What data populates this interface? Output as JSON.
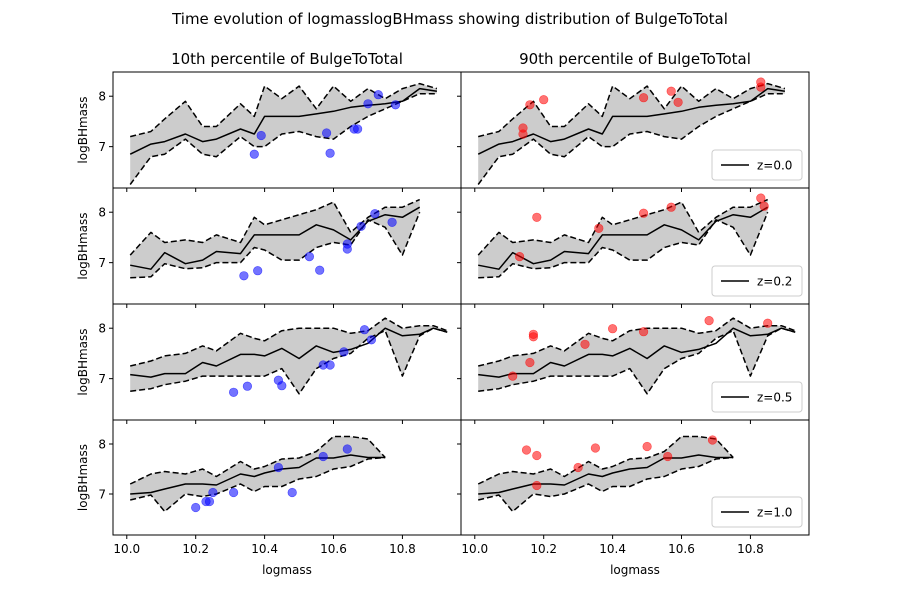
{
  "figure": {
    "suptitle": "Time evolution of logmasslogBHmass showing distribution of BulgeToTotal",
    "columns": [
      {
        "title": "10th percentile of BulgeToTotal",
        "point_color": "#0000ff"
      },
      {
        "title": "90th percentile of BulgeToTotal",
        "point_color": "#ff0000"
      }
    ],
    "xlabel": "logmass",
    "ylabel": "logBHmass",
    "xlim": [
      9.96,
      10.97
    ],
    "ylim": [
      6.18,
      8.48
    ],
    "xticks": [
      "10.0",
      "10.2",
      "10.4",
      "10.6",
      "10.8"
    ],
    "xtick_values": [
      10.0,
      10.2,
      10.4,
      10.6,
      10.8
    ],
    "yticks": [
      "7",
      "8"
    ],
    "ytick_values": [
      7,
      8
    ],
    "band_fill": "#cccccc",
    "line_color": "#000000"
  },
  "chart_data": [
    {
      "type": "line",
      "redshift_label": "z=0.0",
      "median": {
        "x": [
          10.01,
          10.07,
          10.11,
          10.17,
          10.22,
          10.26,
          10.33,
          10.37,
          10.4,
          10.45,
          10.5,
          10.55,
          10.6,
          10.65,
          10.7,
          10.75,
          10.8,
          10.85,
          10.9
        ],
        "y": [
          6.85,
          7.05,
          7.1,
          7.25,
          7.1,
          7.15,
          7.35,
          7.25,
          7.6,
          7.6,
          7.6,
          7.65,
          7.7,
          7.78,
          7.82,
          7.85,
          7.9,
          8.15,
          8.1
        ]
      },
      "upper": {
        "x": [
          10.01,
          10.07,
          10.11,
          10.17,
          10.22,
          10.26,
          10.33,
          10.37,
          10.4,
          10.45,
          10.5,
          10.55,
          10.6,
          10.65,
          10.7,
          10.75,
          10.8,
          10.85,
          10.9
        ],
        "y": [
          7.2,
          7.3,
          7.55,
          7.9,
          7.4,
          7.4,
          7.85,
          7.6,
          8.2,
          7.95,
          8.2,
          7.75,
          8.2,
          7.9,
          8.15,
          7.95,
          8.15,
          8.25,
          8.15
        ]
      },
      "lower": {
        "x": [
          10.01,
          10.07,
          10.11,
          10.17,
          10.22,
          10.26,
          10.33,
          10.37,
          10.4,
          10.45,
          10.5,
          10.55,
          10.6,
          10.65,
          10.7,
          10.75,
          10.8,
          10.85,
          10.9
        ],
        "y": [
          6.25,
          6.8,
          6.85,
          7.15,
          6.85,
          6.8,
          7.2,
          7.0,
          7.0,
          7.25,
          7.3,
          7.2,
          7.15,
          7.4,
          7.6,
          7.75,
          7.9,
          8.05,
          8.05
        ]
      },
      "points_left": {
        "x": [
          10.37,
          10.39,
          10.58,
          10.59,
          10.66,
          10.67,
          10.7,
          10.73,
          10.78
        ],
        "y": [
          6.85,
          7.22,
          7.27,
          6.87,
          7.35,
          7.35,
          7.85,
          8.03,
          7.83
        ]
      },
      "points_right": {
        "x": [
          10.14,
          10.14,
          10.16,
          10.2,
          10.49,
          10.57,
          10.59,
          10.83,
          10.83
        ],
        "y": [
          7.25,
          7.37,
          7.83,
          7.93,
          7.97,
          8.1,
          7.88,
          8.18,
          8.28
        ]
      }
    },
    {
      "type": "line",
      "redshift_label": "z=0.2",
      "median": {
        "x": [
          10.01,
          10.07,
          10.11,
          10.17,
          10.22,
          10.26,
          10.33,
          10.37,
          10.4,
          10.45,
          10.5,
          10.55,
          10.6,
          10.65,
          10.7,
          10.75,
          10.8,
          10.85
        ],
        "y": [
          6.95,
          6.87,
          7.2,
          6.98,
          7.05,
          7.22,
          7.18,
          7.55,
          7.55,
          7.55,
          7.55,
          7.75,
          7.65,
          7.45,
          7.82,
          7.95,
          7.9,
          8.1
        ]
      },
      "upper": {
        "x": [
          10.01,
          10.07,
          10.11,
          10.17,
          10.22,
          10.26,
          10.33,
          10.37,
          10.4,
          10.45,
          10.5,
          10.55,
          10.6,
          10.65,
          10.7,
          10.75,
          10.8,
          10.85
        ],
        "y": [
          7.15,
          7.6,
          7.4,
          7.45,
          7.4,
          7.55,
          7.4,
          7.9,
          7.75,
          7.85,
          7.95,
          8.05,
          8.2,
          7.6,
          7.9,
          8.1,
          8.1,
          8.25
        ]
      },
      "lower": {
        "x": [
          10.01,
          10.07,
          10.11,
          10.17,
          10.22,
          10.26,
          10.33,
          10.37,
          10.4,
          10.45,
          10.5,
          10.55,
          10.6,
          10.65,
          10.7,
          10.75,
          10.8,
          10.85
        ],
        "y": [
          6.7,
          6.72,
          6.98,
          6.88,
          6.9,
          7.0,
          7.0,
          7.3,
          7.25,
          7.05,
          7.05,
          7.3,
          7.4,
          7.35,
          7.85,
          7.7,
          7.15,
          8.0
        ]
      },
      "points_left": {
        "x": [
          10.34,
          10.38,
          10.53,
          10.56,
          10.64,
          10.64,
          10.68,
          10.72,
          10.77
        ],
        "y": [
          6.74,
          6.84,
          7.12,
          6.85,
          7.27,
          7.37,
          7.72,
          7.97,
          7.8
        ]
      },
      "points_right": {
        "x": [
          10.13,
          10.18,
          10.36,
          10.49,
          10.57,
          10.83,
          10.84
        ],
        "y": [
          7.12,
          7.9,
          7.68,
          7.98,
          8.1,
          8.28,
          8.12
        ]
      }
    },
    {
      "type": "line",
      "redshift_label": "z=0.5",
      "median": {
        "x": [
          10.01,
          10.07,
          10.11,
          10.17,
          10.22,
          10.26,
          10.33,
          10.37,
          10.4,
          10.45,
          10.5,
          10.55,
          10.6,
          10.65,
          10.7,
          10.75,
          10.8,
          10.85,
          10.89,
          10.93
        ],
        "y": [
          7.08,
          7.03,
          7.1,
          7.1,
          7.32,
          7.25,
          7.48,
          7.48,
          7.45,
          7.6,
          7.4,
          7.65,
          7.52,
          7.58,
          7.7,
          8.0,
          7.85,
          7.88,
          8.0,
          7.92
        ]
      },
      "upper": {
        "x": [
          10.01,
          10.07,
          10.11,
          10.17,
          10.22,
          10.26,
          10.33,
          10.37,
          10.4,
          10.45,
          10.5,
          10.55,
          10.6,
          10.65,
          10.7,
          10.75,
          10.8,
          10.85,
          10.89,
          10.93
        ],
        "y": [
          7.25,
          7.35,
          7.45,
          7.5,
          7.65,
          7.55,
          7.9,
          7.8,
          7.75,
          7.95,
          8.0,
          8.0,
          8.0,
          7.9,
          7.95,
          8.2,
          8.0,
          8.05,
          8.05,
          7.95
        ]
      },
      "lower": {
        "x": [
          10.01,
          10.07,
          10.11,
          10.17,
          10.22,
          10.26,
          10.33,
          10.37,
          10.4,
          10.45,
          10.5,
          10.55,
          10.6,
          10.65,
          10.7,
          10.75,
          10.8,
          10.85,
          10.89,
          10.93
        ],
        "y": [
          6.75,
          6.8,
          6.88,
          6.95,
          7.05,
          7.05,
          7.05,
          7.05,
          7.05,
          7.2,
          6.7,
          7.2,
          7.4,
          7.5,
          7.8,
          7.95,
          7.05,
          7.85,
          8.0,
          7.92
        ]
      },
      "points_left": {
        "x": [
          10.31,
          10.35,
          10.44,
          10.45,
          10.57,
          10.59,
          10.63,
          10.69,
          10.71
        ],
        "y": [
          6.73,
          6.85,
          6.97,
          6.86,
          7.27,
          7.27,
          7.53,
          7.97,
          7.77
        ]
      },
      "points_right": {
        "x": [
          10.11,
          10.16,
          10.17,
          10.17,
          10.32,
          10.4,
          10.49,
          10.68,
          10.85
        ],
        "y": [
          7.05,
          7.32,
          7.88,
          7.83,
          7.68,
          7.99,
          7.93,
          8.15,
          8.1
        ]
      }
    },
    {
      "type": "line",
      "redshift_label": "z=1.0",
      "median": {
        "x": [
          10.01,
          10.07,
          10.11,
          10.17,
          10.22,
          10.26,
          10.33,
          10.37,
          10.4,
          10.45,
          10.5,
          10.55,
          10.6,
          10.65,
          10.7,
          10.75
        ],
        "y": [
          7.0,
          7.03,
          7.1,
          7.2,
          7.2,
          7.18,
          7.4,
          7.35,
          7.42,
          7.5,
          7.53,
          7.72,
          7.72,
          7.78,
          7.73,
          7.73
        ]
      },
      "upper": {
        "x": [
          10.01,
          10.07,
          10.11,
          10.17,
          10.22,
          10.26,
          10.33,
          10.37,
          10.4,
          10.45,
          10.5,
          10.55,
          10.6,
          10.65,
          10.7,
          10.75
        ],
        "y": [
          7.2,
          7.4,
          7.45,
          7.4,
          7.5,
          7.35,
          7.65,
          7.5,
          7.55,
          7.7,
          7.72,
          7.85,
          8.15,
          8.15,
          8.1,
          7.73
        ]
      },
      "lower": {
        "x": [
          10.01,
          10.07,
          10.11,
          10.17,
          10.22,
          10.26,
          10.33,
          10.37,
          10.4,
          10.45,
          10.5,
          10.55,
          10.6,
          10.65,
          10.7,
          10.75
        ],
        "y": [
          6.88,
          6.98,
          6.65,
          7.0,
          6.95,
          7.0,
          7.2,
          7.05,
          7.15,
          7.15,
          7.3,
          7.35,
          7.5,
          7.55,
          7.7,
          7.73
        ]
      },
      "points_left": {
        "x": [
          10.2,
          10.23,
          10.24,
          10.25,
          10.31,
          10.44,
          10.48,
          10.57,
          10.64
        ],
        "y": [
          6.73,
          6.85,
          6.85,
          7.03,
          7.03,
          7.53,
          7.03,
          7.75,
          7.9
        ]
      },
      "points_right": {
        "x": [
          10.15,
          10.18,
          10.18,
          10.3,
          10.35,
          10.5,
          10.56,
          10.69
        ],
        "y": [
          7.88,
          7.17,
          7.77,
          7.53,
          7.92,
          7.95,
          7.75,
          8.08
        ]
      }
    }
  ]
}
